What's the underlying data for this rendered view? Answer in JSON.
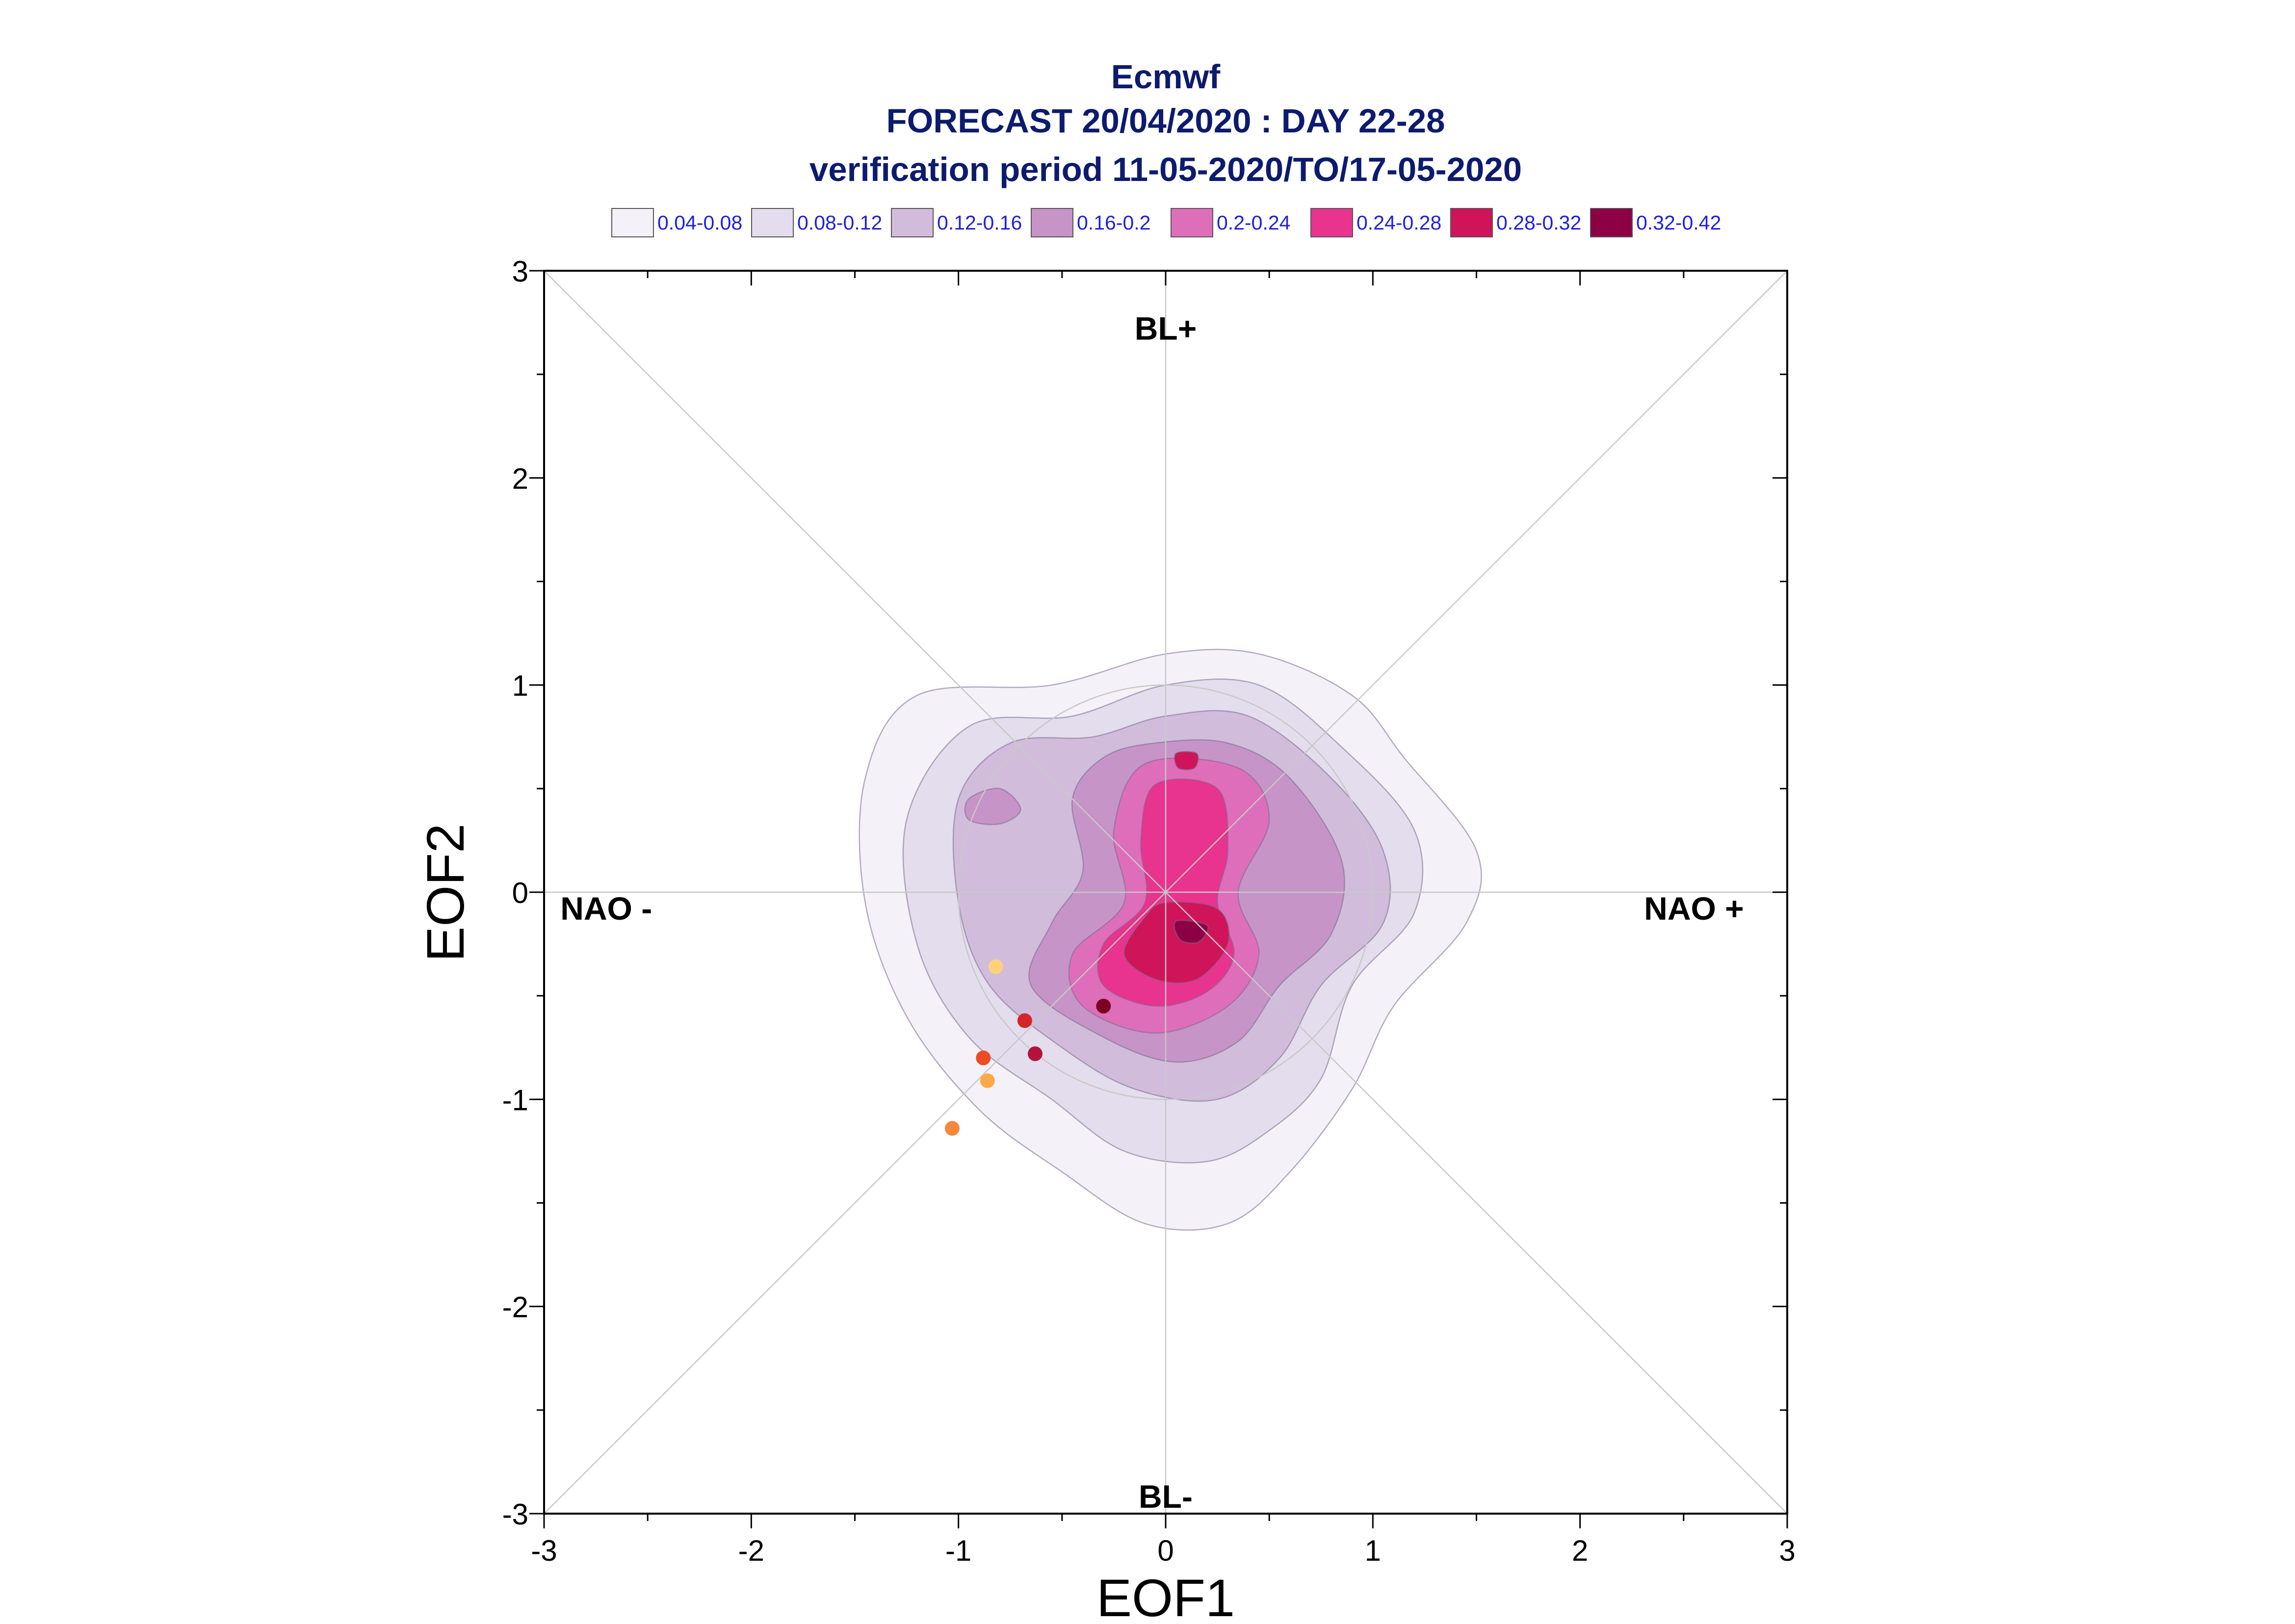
{
  "chart_data": {
    "type": "scatter",
    "title": "Ecmwf",
    "subtitle": [
      "FORECAST 20/04/2020 : DAY 22-28",
      "verification period 11-05-2020/TO/17-05-2020"
    ],
    "xlabel": "EOF1",
    "ylabel": "EOF2",
    "xlim": [
      -3,
      3
    ],
    "ylim": [
      -3,
      3
    ],
    "x_ticks": [
      "-3",
      "-2",
      "-1",
      "0",
      "1",
      "2",
      "3"
    ],
    "y_ticks": [
      "-3",
      "-2",
      "-1",
      "0",
      "1",
      "2",
      "3"
    ],
    "grid": false,
    "legend_position": "top",
    "regime_labels": [
      {
        "text": "BL+",
        "x": 0,
        "y": 2.72
      },
      {
        "text": "BL-",
        "x": 0,
        "y": -2.92
      },
      {
        "text": "NAO -",
        "x": -2.7,
        "y": -0.08
      },
      {
        "text": "NAO +",
        "x": 2.55,
        "y": -0.08
      }
    ],
    "density_levels": [
      {
        "label": "0.04-0.08",
        "color": "#f4f2f8"
      },
      {
        "label": "0.08-0.12",
        "color": "#e3ddee"
      },
      {
        "label": "0.12-0.16",
        "color": "#d2bcdc"
      },
      {
        "label": "0.16-0.2",
        "color": "#c794c8"
      },
      {
        "label": "0.2-0.24",
        "color": "#de6eb9"
      },
      {
        "label": "0.24-0.28",
        "color": "#e8338f"
      },
      {
        "label": "0.28-0.32",
        "color": "#cf1459"
      },
      {
        "label": "0.32-0.42",
        "color": "#8e0046"
      }
    ],
    "density_contours": [
      [
        [
          0.0,
          1.15
        ],
        [
          0.45,
          1.15
        ],
        [
          0.9,
          0.95
        ],
        [
          1.15,
          0.65
        ],
        [
          1.5,
          0.2
        ],
        [
          1.45,
          -0.15
        ],
        [
          1.1,
          -0.55
        ],
        [
          0.9,
          -0.95
        ],
        [
          0.6,
          -1.35
        ],
        [
          0.3,
          -1.6
        ],
        [
          -0.1,
          -1.6
        ],
        [
          -0.5,
          -1.35
        ],
        [
          -0.9,
          -1.05
        ],
        [
          -1.25,
          -0.6
        ],
        [
          -1.45,
          -0.05
        ],
        [
          -1.45,
          0.55
        ],
        [
          -1.2,
          0.95
        ],
        [
          -0.55,
          1.0
        ]
      ],
      [
        [
          0.0,
          1.0
        ],
        [
          0.45,
          1.0
        ],
        [
          0.85,
          0.7
        ],
        [
          1.2,
          0.3
        ],
        [
          1.2,
          -0.1
        ],
        [
          0.9,
          -0.45
        ],
        [
          0.75,
          -0.9
        ],
        [
          0.5,
          -1.15
        ],
        [
          0.2,
          -1.3
        ],
        [
          -0.2,
          -1.25
        ],
        [
          -0.55,
          -1.0
        ],
        [
          -0.95,
          -0.7
        ],
        [
          -1.2,
          -0.25
        ],
        [
          -1.25,
          0.35
        ],
        [
          -0.95,
          0.8
        ],
        [
          -0.45,
          0.85
        ]
      ],
      [
        [
          0.0,
          0.85
        ],
        [
          0.4,
          0.85
        ],
        [
          0.8,
          0.55
        ],
        [
          1.05,
          0.2
        ],
        [
          1.05,
          -0.15
        ],
        [
          0.75,
          -0.45
        ],
        [
          0.55,
          -0.8
        ],
        [
          0.25,
          -1.0
        ],
        [
          -0.15,
          -0.95
        ],
        [
          -0.5,
          -0.75
        ],
        [
          -0.85,
          -0.45
        ],
        [
          -1.0,
          -0.05
        ],
        [
          -1.0,
          0.45
        ],
        [
          -0.75,
          0.72
        ],
        [
          -0.35,
          0.75
        ]
      ],
      [
        [
          -0.05,
          0.72
        ],
        [
          0.3,
          0.72
        ],
        [
          0.6,
          0.55
        ],
        [
          0.85,
          0.15
        ],
        [
          0.8,
          -0.2
        ],
        [
          0.55,
          -0.45
        ],
        [
          0.35,
          -0.72
        ],
        [
          0.05,
          -0.82
        ],
        [
          -0.3,
          -0.7
        ],
        [
          -0.65,
          -0.45
        ],
        [
          -0.55,
          -0.15
        ],
        [
          -0.4,
          0.1
        ],
        [
          -0.45,
          0.45
        ],
        [
          -0.3,
          0.65
        ]
      ],
      [
        [
          -0.1,
          0.62
        ],
        [
          0.35,
          0.6
        ],
        [
          0.5,
          0.35
        ],
        [
          0.35,
          0.0
        ],
        [
          0.45,
          -0.3
        ],
        [
          0.3,
          -0.55
        ],
        [
          -0.05,
          -0.68
        ],
        [
          -0.4,
          -0.55
        ],
        [
          -0.45,
          -0.3
        ],
        [
          -0.2,
          -0.05
        ],
        [
          -0.25,
          0.3
        ]
      ],
      [
        [
          -0.05,
          0.52
        ],
        [
          0.25,
          0.5
        ],
        [
          0.3,
          0.2
        ],
        [
          0.25,
          -0.05
        ],
        [
          0.33,
          -0.3
        ],
        [
          0.2,
          -0.48
        ],
        [
          -0.05,
          -0.55
        ],
        [
          -0.3,
          -0.45
        ],
        [
          -0.3,
          -0.25
        ],
        [
          -0.1,
          -0.05
        ],
        [
          -0.12,
          0.25
        ]
      ],
      [
        [
          0.0,
          -0.05
        ],
        [
          0.25,
          -0.08
        ],
        [
          0.3,
          -0.25
        ],
        [
          0.15,
          -0.42
        ],
        [
          -0.05,
          -0.42
        ],
        [
          -0.2,
          -0.3
        ],
        [
          -0.1,
          -0.12
        ]
      ],
      [
        [
          0.05,
          -0.14
        ],
        [
          0.2,
          -0.16
        ],
        [
          0.16,
          -0.24
        ],
        [
          0.07,
          -0.23
        ]
      ]
    ],
    "secondary_features": [
      {
        "level_index": 3,
        "points": [
          [
            -0.95,
            0.45
          ],
          [
            -0.8,
            0.5
          ],
          [
            -0.7,
            0.4
          ],
          [
            -0.8,
            0.33
          ],
          [
            -0.95,
            0.35
          ]
        ]
      },
      {
        "level_index": 6,
        "points": [
          [
            0.05,
            0.67
          ],
          [
            0.15,
            0.67
          ],
          [
            0.14,
            0.6
          ],
          [
            0.06,
            0.6
          ]
        ]
      }
    ],
    "series": [
      {
        "points": [
          {
            "x": -0.82,
            "y": -0.36,
            "color": "#fdd27a"
          },
          {
            "x": -0.68,
            "y": -0.62,
            "color": "#d3262a"
          },
          {
            "x": -0.3,
            "y": -0.55,
            "color": "#7d0024"
          },
          {
            "x": -0.88,
            "y": -0.8,
            "color": "#ec4b25"
          },
          {
            "x": -0.63,
            "y": -0.78,
            "color": "#b3133a"
          },
          {
            "x": -0.86,
            "y": -0.91,
            "color": "#fba948"
          },
          {
            "x": -1.03,
            "y": -1.14,
            "color": "#f6883c"
          }
        ]
      }
    ]
  }
}
